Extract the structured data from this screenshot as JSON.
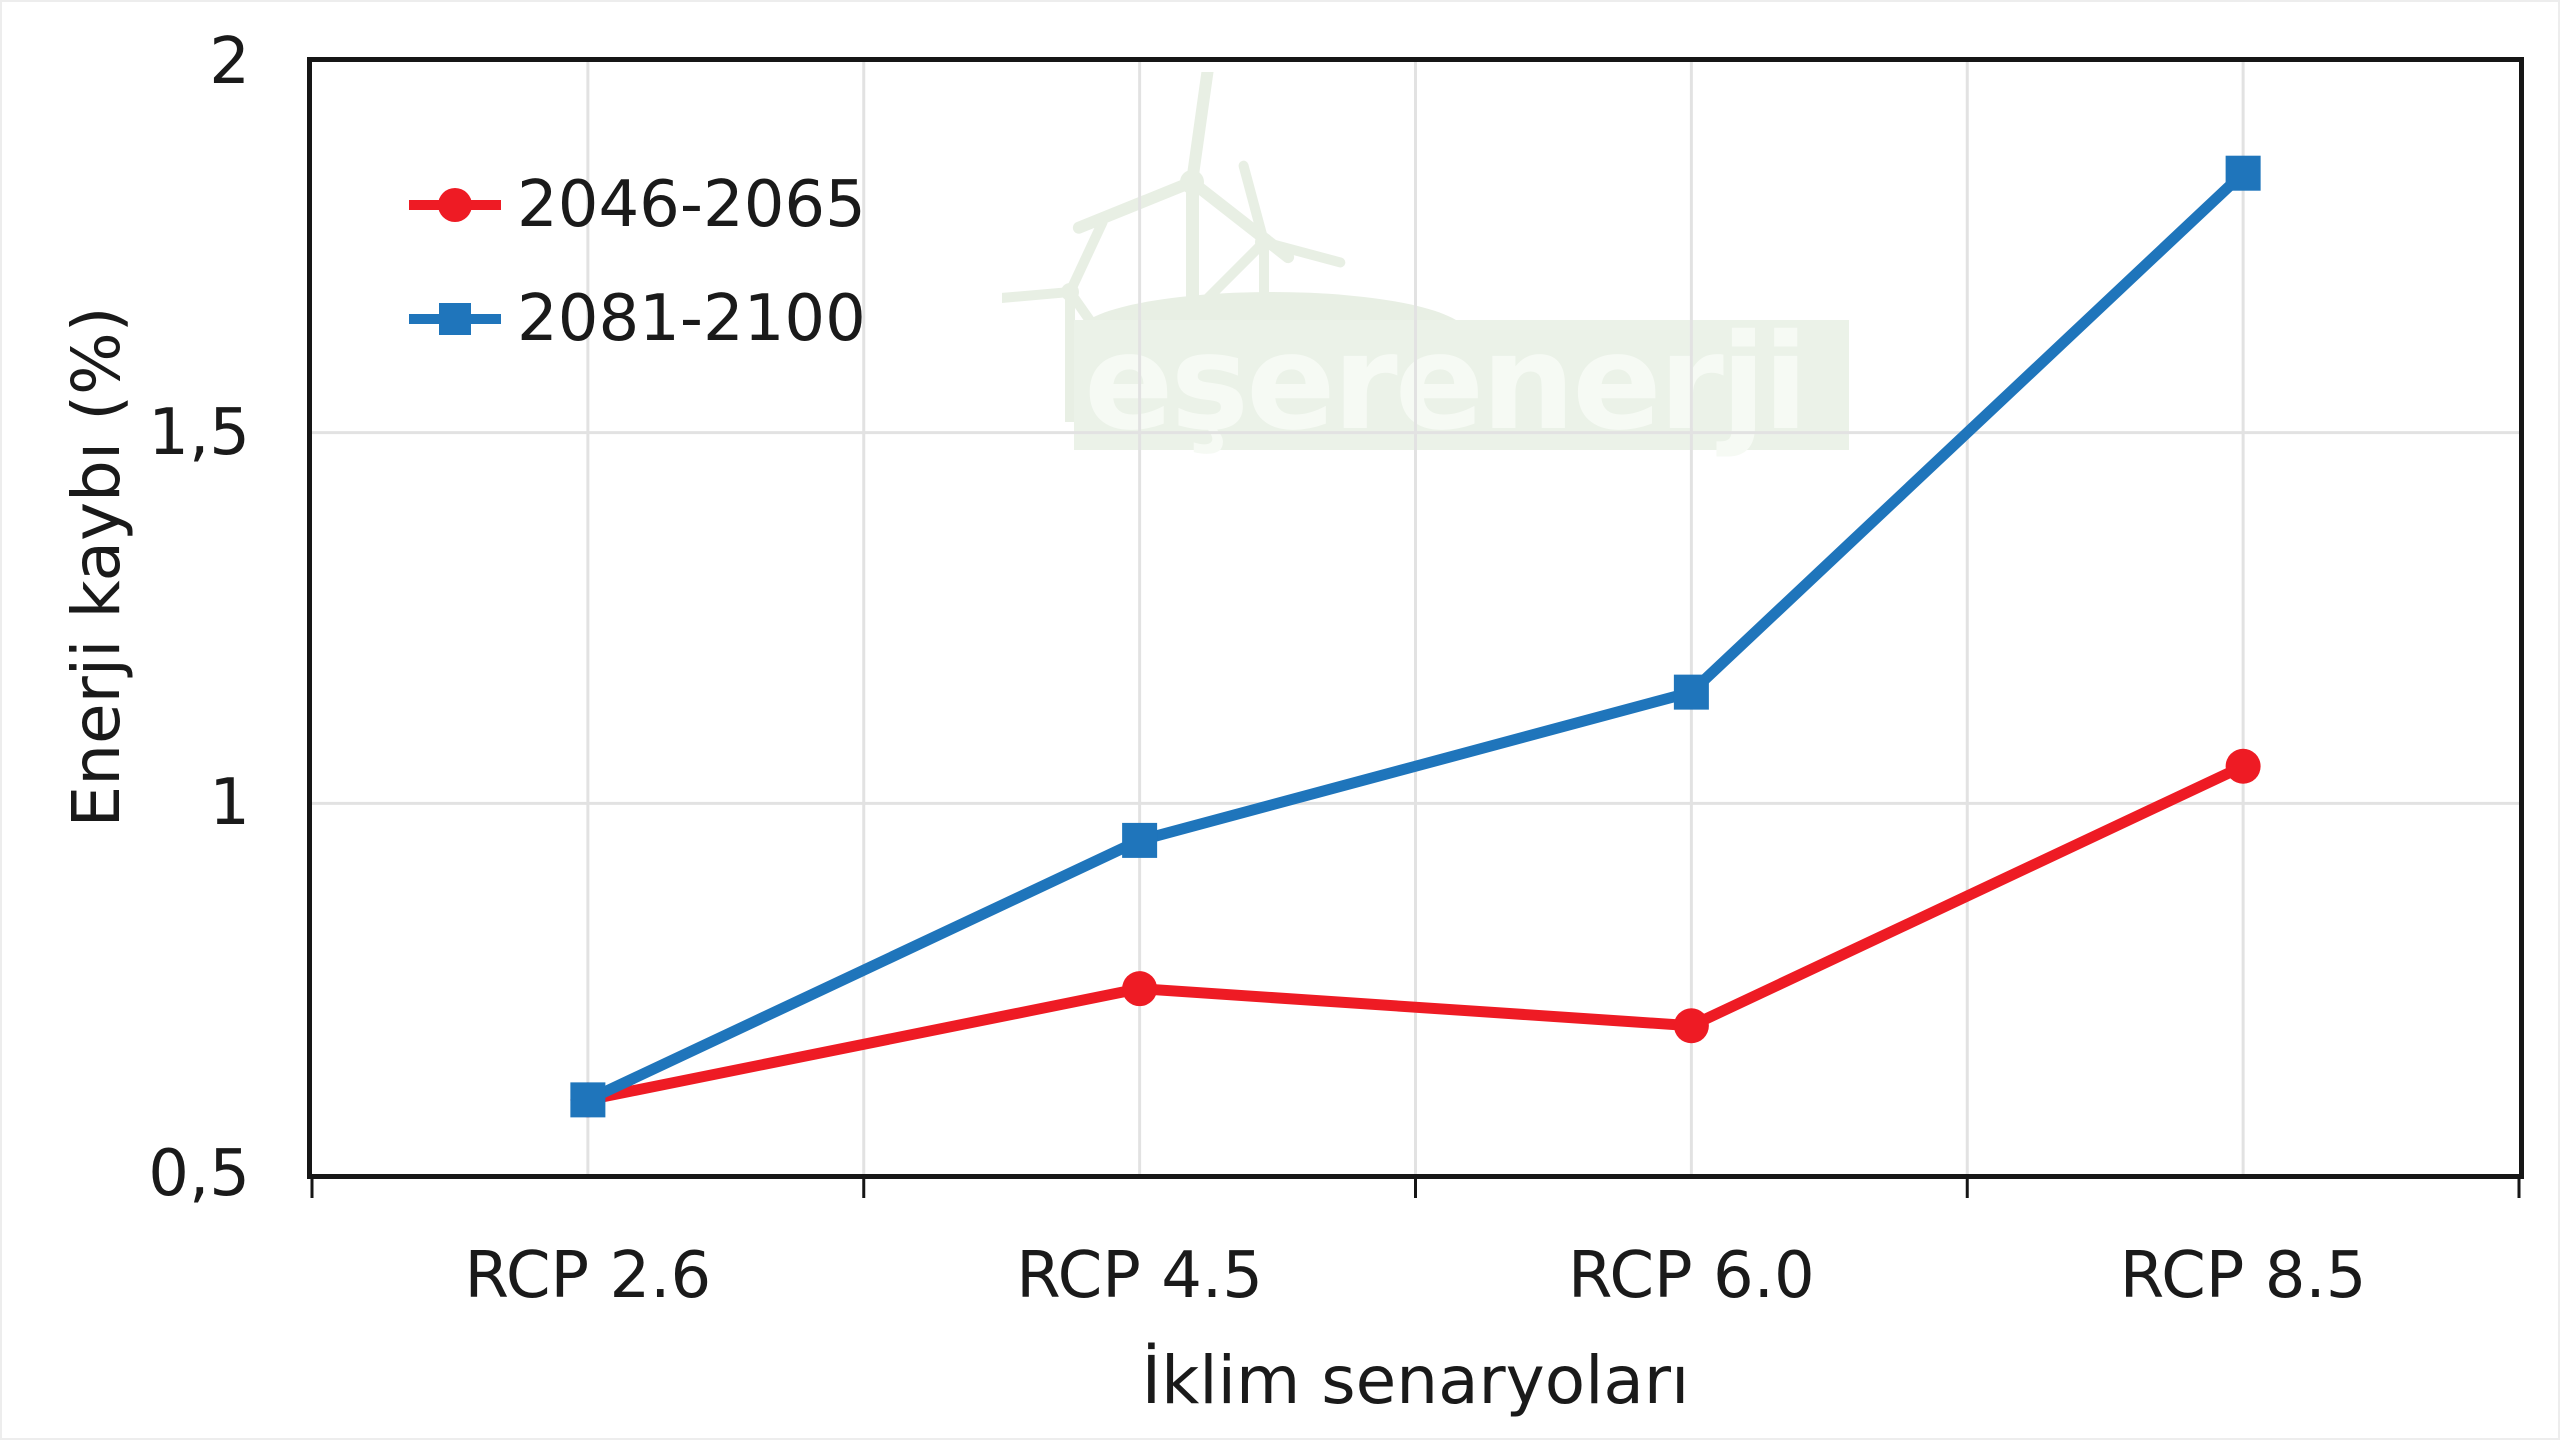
{
  "watermark": {
    "text": "eşerenerji"
  },
  "colors": {
    "series_red": "#ee1b24",
    "series_blue": "#1f75bb",
    "gridline": "#e2e2e2",
    "axis_frame": "#161616",
    "text": "#1a1a1a",
    "watermark_green": "#e8efe4",
    "watermark_band": "#ebf2e8"
  },
  "chart_data": {
    "type": "line",
    "categories": [
      "RCP 2.6",
      "RCP 4.5",
      "RCP 6.0",
      "RCP 8.5"
    ],
    "series": [
      {
        "name": "2046-2065",
        "color": "#ee1b24",
        "marker": "circle",
        "values": [
          0.6,
          0.75,
          0.7,
          1.05
        ]
      },
      {
        "name": "2081-2100",
        "color": "#1f75bb",
        "marker": "square",
        "values": [
          0.6,
          0.95,
          1.15,
          1.85
        ]
      }
    ],
    "xlabel": "İklim senaryoları",
    "ylabel": "Enerji kaybı (%)",
    "ylim": [
      0.5,
      2
    ],
    "ytick_step": 0.5,
    "ytick_labels_ascending": [
      "0,5",
      "1",
      "1,5",
      "2"
    ],
    "grid": true,
    "vertical_grid_divisions": 8,
    "legend_position": "top-left"
  }
}
